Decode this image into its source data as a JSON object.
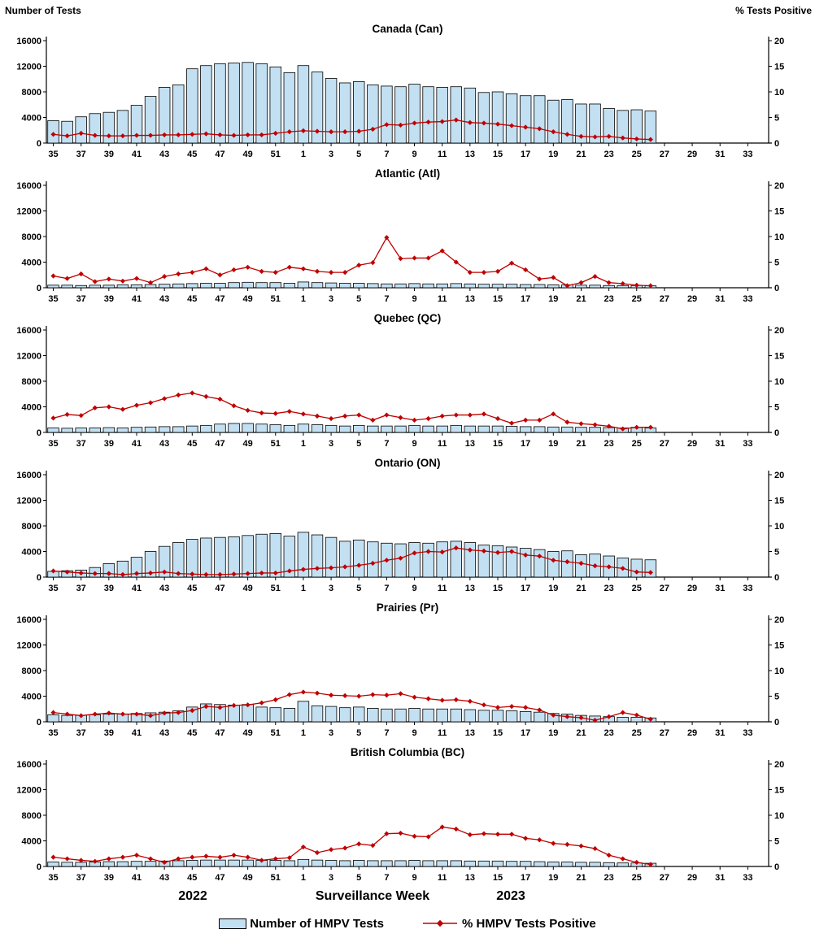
{
  "page": {
    "left_axis_title": "Number of Tests",
    "right_axis_title": "% Tests Positive",
    "x_axis_label": "Surveillance Week",
    "year_left": "2022",
    "year_right": "2023",
    "legend": {
      "bars": "Number of HMPV Tests",
      "line": "% HMPV Tests Positive"
    },
    "colors": {
      "bar_fill": "#C2E0F2",
      "bar_stroke": "#000000",
      "line": "#C00000",
      "axis": "#000000"
    }
  },
  "chart_data": {
    "type": "combo-bar-line-multi-panel",
    "categories": [
      "35",
      "36",
      "37",
      "38",
      "39",
      "40",
      "41",
      "42",
      "43",
      "44",
      "45",
      "46",
      "47",
      "48",
      "49",
      "50",
      "51",
      "52",
      "1",
      "2",
      "3",
      "4",
      "5",
      "6",
      "7",
      "8",
      "9",
      "10",
      "11",
      "12",
      "13",
      "14",
      "15",
      "16",
      "17",
      "18",
      "19",
      "20",
      "21",
      "22",
      "23",
      "24",
      "25",
      "26",
      "27",
      "28",
      "29",
      "30",
      "31",
      "32",
      "33",
      "34"
    ],
    "tick_step": 2,
    "tick_start_index": 0,
    "ylim_left": [
      0,
      16000
    ],
    "yticks_left": [
      0,
      4000,
      8000,
      12000,
      16000
    ],
    "ylim_right": [
      0,
      20
    ],
    "yticks_right": [
      0,
      5,
      10,
      15,
      20
    ],
    "legend_position": "bottom",
    "grid": false,
    "panels": [
      {
        "title": "Canada (Can)",
        "bar_series": {
          "name": "Number of HMPV Tests",
          "axis": "left",
          "values": [
            3500,
            3400,
            4100,
            4600,
            4800,
            5100,
            5900,
            7300,
            8700,
            9100,
            11600,
            12100,
            12400,
            12500,
            12600,
            12400,
            11900,
            11000,
            12100,
            11100,
            10100,
            9400,
            9600,
            9100,
            8900,
            8800,
            9200,
            8800,
            8700,
            8800,
            8600,
            7900,
            8000,
            7700,
            7400,
            7400,
            6700,
            6800,
            6100,
            6100,
            5400,
            5100,
            5200,
            5000,
            null,
            null,
            null,
            null,
            null,
            null,
            null,
            null
          ]
        },
        "line_series": {
          "name": "% HMPV Tests Positive",
          "axis": "right",
          "values": [
            1.7,
            1.4,
            1.9,
            1.5,
            1.4,
            1.4,
            1.5,
            1.5,
            1.6,
            1.6,
            1.7,
            1.8,
            1.6,
            1.5,
            1.6,
            1.6,
            1.9,
            2.2,
            2.4,
            2.3,
            2.2,
            2.2,
            2.3,
            2.7,
            3.6,
            3.5,
            3.9,
            4.1,
            4.2,
            4.5,
            4.0,
            3.9,
            3.7,
            3.4,
            3.1,
            2.8,
            2.2,
            1.7,
            1.3,
            1.2,
            1.3,
            1.0,
            0.8,
            0.7,
            null,
            null,
            null,
            null,
            null,
            null,
            null,
            null
          ]
        }
      },
      {
        "title": "Atlantic (Atl)",
        "bar_series": {
          "name": "Number of HMPV Tests",
          "axis": "left",
          "values": [
            400,
            400,
            350,
            400,
            400,
            450,
            450,
            500,
            550,
            600,
            650,
            700,
            700,
            800,
            850,
            800,
            800,
            700,
            900,
            800,
            750,
            700,
            700,
            650,
            600,
            600,
            650,
            600,
            600,
            650,
            600,
            550,
            550,
            550,
            500,
            500,
            450,
            450,
            400,
            400,
            350,
            350,
            350,
            300,
            null,
            null,
            null,
            null,
            null,
            null,
            null,
            null
          ]
        },
        "line_series": {
          "name": "% HMPV Tests Positive",
          "axis": "right",
          "values": [
            2.3,
            1.8,
            2.7,
            1.2,
            1.7,
            1.3,
            1.8,
            1.0,
            2.2,
            2.7,
            3.0,
            3.7,
            2.5,
            3.5,
            4.0,
            3.2,
            3.0,
            4.0,
            3.7,
            3.2,
            3.0,
            3.0,
            4.4,
            4.9,
            9.8,
            5.7,
            5.8,
            5.8,
            7.2,
            5.0,
            3.0,
            3.0,
            3.2,
            4.8,
            3.5,
            1.7,
            2.0,
            0.4,
            1.0,
            2.2,
            1.0,
            0.8,
            0.5,
            0.4,
            null,
            null,
            null,
            null,
            null,
            null,
            null,
            null
          ]
        }
      },
      {
        "title": "Quebec (QC)",
        "bar_series": {
          "name": "Number of HMPV Tests",
          "axis": "left",
          "values": [
            700,
            650,
            700,
            700,
            750,
            700,
            800,
            850,
            900,
            900,
            1000,
            1100,
            1300,
            1400,
            1400,
            1300,
            1200,
            1100,
            1300,
            1200,
            1100,
            1000,
            1100,
            1000,
            1000,
            1000,
            1100,
            1000,
            1000,
            1100,
            1000,
            1000,
            1000,
            950,
            900,
            900,
            850,
            850,
            800,
            800,
            750,
            700,
            800,
            700,
            null,
            null,
            null,
            null,
            null,
            null,
            null,
            null
          ]
        },
        "line_series": {
          "name": "% HMPV Tests Positive",
          "axis": "right",
          "values": [
            2.8,
            3.5,
            3.3,
            4.8,
            5.0,
            4.5,
            5.3,
            5.8,
            6.6,
            7.3,
            7.7,
            7.0,
            6.5,
            5.2,
            4.3,
            3.8,
            3.7,
            4.1,
            3.6,
            3.2,
            2.7,
            3.2,
            3.4,
            2.4,
            3.4,
            2.9,
            2.4,
            2.7,
            3.2,
            3.4,
            3.4,
            3.6,
            2.7,
            1.8,
            2.4,
            2.4,
            3.6,
            2.0,
            1.7,
            1.5,
            1.2,
            0.7,
            1.0,
            1.0,
            null,
            null,
            null,
            null,
            null,
            null,
            null,
            null
          ]
        }
      },
      {
        "title": "Ontario (ON)",
        "bar_series": {
          "name": "Number of HMPV Tests",
          "axis": "left",
          "values": [
            900,
            1000,
            1100,
            1500,
            2100,
            2500,
            3100,
            4000,
            4800,
            5400,
            5900,
            6100,
            6200,
            6300,
            6500,
            6700,
            6800,
            6400,
            7000,
            6600,
            6200,
            5600,
            5800,
            5500,
            5300,
            5200,
            5400,
            5300,
            5500,
            5600,
            5400,
            5000,
            4900,
            4700,
            4500,
            4300,
            4000,
            4100,
            3500,
            3600,
            3300,
            3000,
            2800,
            2700,
            null,
            null,
            null,
            null,
            null,
            null,
            null,
            null
          ]
        },
        "line_series": {
          "name": "% HMPV Tests Positive",
          "axis": "right",
          "values": [
            1.2,
            1.0,
            0.8,
            0.7,
            0.7,
            0.5,
            0.7,
            0.8,
            1.0,
            0.7,
            0.6,
            0.5,
            0.5,
            0.6,
            0.7,
            0.8,
            0.8,
            1.2,
            1.5,
            1.7,
            1.8,
            2.0,
            2.3,
            2.7,
            3.3,
            3.7,
            4.7,
            5.0,
            4.9,
            5.7,
            5.3,
            5.1,
            4.8,
            5.0,
            4.3,
            4.1,
            3.3,
            3.0,
            2.7,
            2.2,
            2.0,
            1.7,
            1.0,
            0.9,
            null,
            null,
            null,
            null,
            null,
            null,
            null,
            null
          ]
        }
      },
      {
        "title": "Prairies (Pr)",
        "bar_series": {
          "name": "Number of HMPV Tests",
          "axis": "left",
          "values": [
            1100,
            1000,
            1000,
            1100,
            1200,
            1200,
            1300,
            1400,
            1500,
            1700,
            2300,
            2800,
            2700,
            2600,
            2700,
            2300,
            2200,
            2100,
            3200,
            2500,
            2400,
            2200,
            2300,
            2100,
            2000,
            2000,
            2100,
            2000,
            2000,
            2000,
            1900,
            1800,
            1800,
            1700,
            1600,
            1500,
            1300,
            1200,
            1000,
            900,
            800,
            700,
            700,
            600,
            null,
            null,
            null,
            null,
            null,
            null,
            null,
            null
          ]
        },
        "line_series": {
          "name": "% HMPV Tests Positive",
          "axis": "right",
          "values": [
            1.8,
            1.5,
            1.2,
            1.5,
            1.7,
            1.5,
            1.5,
            1.2,
            1.7,
            1.8,
            2.2,
            3.0,
            2.8,
            3.2,
            3.3,
            3.7,
            4.3,
            5.3,
            5.8,
            5.6,
            5.2,
            5.1,
            5.0,
            5.3,
            5.2,
            5.5,
            4.8,
            4.5,
            4.2,
            4.3,
            4.0,
            3.3,
            2.8,
            3.0,
            2.8,
            2.3,
            1.3,
            1.0,
            0.8,
            0.3,
            1.0,
            1.8,
            1.3,
            0.5,
            null,
            null,
            null,
            null,
            null,
            null,
            null,
            null
          ]
        }
      },
      {
        "title": "British Columbia (BC)",
        "bar_series": {
          "name": "Number of HMPV Tests",
          "axis": "left",
          "values": [
            700,
            650,
            650,
            700,
            750,
            750,
            800,
            800,
            850,
            900,
            950,
            1000,
            1000,
            1000,
            1000,
            950,
            950,
            900,
            1100,
            1000,
            950,
            900,
            950,
            900,
            900,
            900,
            950,
            900,
            900,
            900,
            850,
            850,
            850,
            800,
            800,
            750,
            700,
            700,
            650,
            650,
            600,
            550,
            550,
            500,
            null,
            null,
            null,
            null,
            null,
            null,
            null,
            null
          ]
        },
        "line_series": {
          "name": "% HMPV Tests Positive",
          "axis": "right",
          "values": [
            1.8,
            1.5,
            1.2,
            1.0,
            1.5,
            1.8,
            2.2,
            1.5,
            0.8,
            1.5,
            1.8,
            2.0,
            1.8,
            2.2,
            1.8,
            1.2,
            1.5,
            1.7,
            3.8,
            2.7,
            3.3,
            3.6,
            4.4,
            4.1,
            6.4,
            6.5,
            5.9,
            5.8,
            7.7,
            7.3,
            6.2,
            6.4,
            6.3,
            6.3,
            5.5,
            5.2,
            4.5,
            4.3,
            4.0,
            3.5,
            2.2,
            1.5,
            0.8,
            0.4,
            null,
            null,
            null,
            null,
            null,
            null,
            null,
            null
          ]
        }
      }
    ]
  }
}
